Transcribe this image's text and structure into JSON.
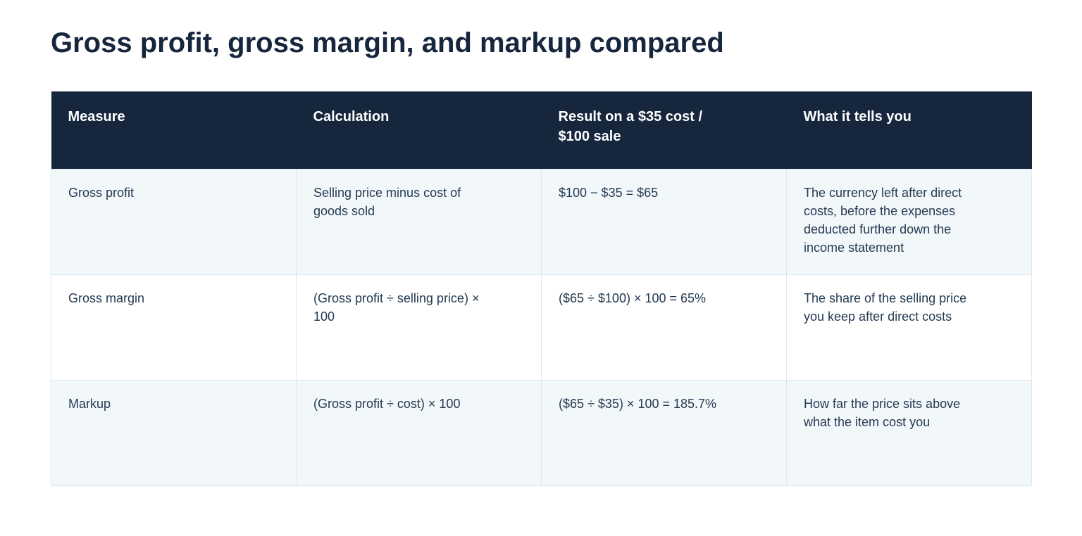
{
  "title": "Gross profit, gross margin, and markup compared",
  "table": {
    "headers": [
      "Measure",
      "Calculation",
      "Result on a $35 cost / $100 sale",
      "What it tells you"
    ],
    "rows": [
      {
        "measure": "Gross profit",
        "calculation": "Selling price minus cost of goods sold",
        "result": "$100 − $35 = $65",
        "meaning": "The currency left after direct costs, before the expenses deducted further down the income statement"
      },
      {
        "measure": "Gross margin",
        "calculation": "(Gross profit ÷ selling price) × 100",
        "result": "($65 ÷ $100) × 100 = 65%",
        "meaning": "The share of the selling price you keep after direct costs"
      },
      {
        "measure": "Markup",
        "calculation": "(Gross profit ÷ cost) × 100",
        "result": "($65 ÷ $35) × 100 = 185.7%",
        "meaning": "How far the price sits above what the item cost you"
      }
    ]
  }
}
